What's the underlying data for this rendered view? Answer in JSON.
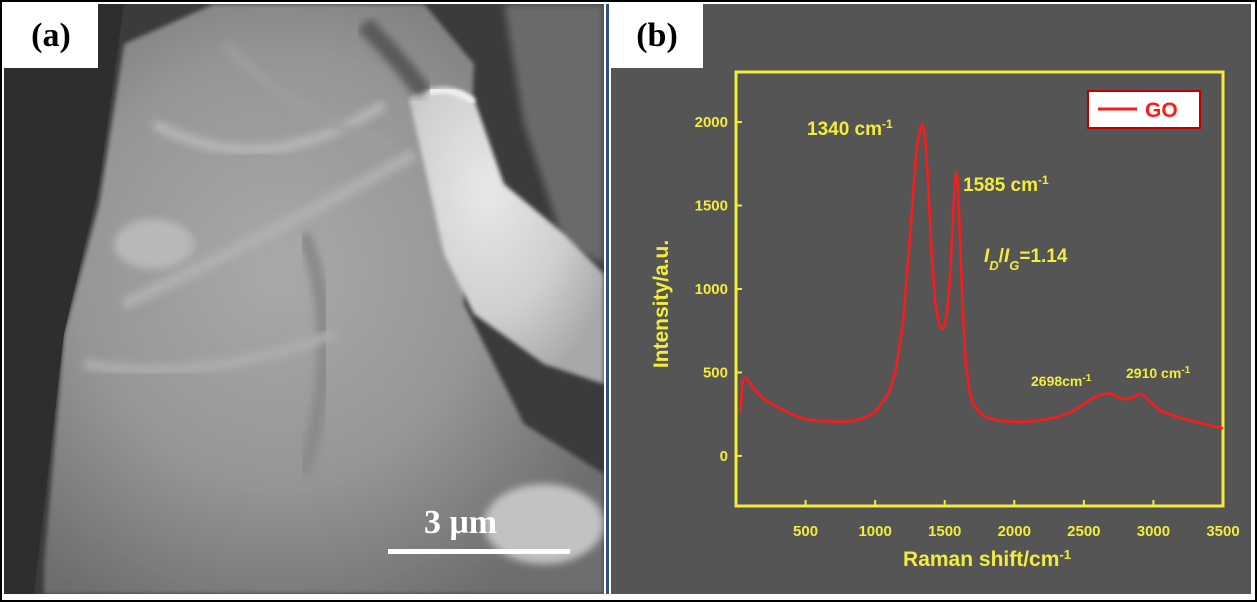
{
  "panel_a": {
    "label": "(a)",
    "scale_bar_label": "3 μm"
  },
  "panel_b": {
    "label": "(b)"
  },
  "colors": {
    "axis": "#f2ec3c",
    "series": "#ff1a1a",
    "panel_background": "#555555",
    "divider": "#2f4f86"
  },
  "chart_data": {
    "type": "line",
    "title": "",
    "xlabel": "Raman shift/cm-1",
    "ylabel": "Intensity/a.u.",
    "xlim": [
      0,
      3500
    ],
    "ylim": [
      -300,
      2300
    ],
    "x_ticks": [
      "500",
      "1000",
      "1500",
      "2000",
      "2500",
      "3000",
      "3500"
    ],
    "y_ticks": [
      "0",
      "500",
      "1000",
      "1500",
      "2000"
    ],
    "legend": {
      "position": "top-right",
      "entries": [
        "GO"
      ]
    },
    "annotations": {
      "d_band": "1340 cm-1",
      "g_band": "1585 cm-1",
      "ratio": "ID/IG=1.14",
      "band_2d": "2698cm-1",
      "band_d_g": "2910 cm-1"
    },
    "series": [
      {
        "name": "GO",
        "x": [
          30,
          50,
          70,
          100,
          150,
          200,
          300,
          400,
          500,
          600,
          700,
          800,
          900,
          1000,
          1100,
          1150,
          1200,
          1250,
          1280,
          1300,
          1320,
          1330,
          1340,
          1350,
          1360,
          1380,
          1400,
          1430,
          1460,
          1480,
          1500,
          1520,
          1540,
          1560,
          1575,
          1585,
          1595,
          1610,
          1630,
          1650,
          1680,
          1700,
          1750,
          1800,
          1900,
          2000,
          2100,
          2200,
          2300,
          2400,
          2500,
          2550,
          2600,
          2650,
          2680,
          2698,
          2720,
          2760,
          2800,
          2850,
          2880,
          2910,
          2940,
          2980,
          3050,
          3150,
          3250,
          3350,
          3450,
          3500
        ],
        "y": [
          260,
          460,
          470,
          440,
          380,
          340,
          290,
          250,
          220,
          210,
          205,
          205,
          220,
          260,
          380,
          520,
          800,
          1300,
          1650,
          1850,
          1940,
          1975,
          1985,
          1960,
          1900,
          1650,
          1300,
          930,
          790,
          760,
          780,
          880,
          1100,
          1450,
          1650,
          1700,
          1630,
          1300,
          880,
          560,
          380,
          320,
          260,
          230,
          210,
          205,
          205,
          215,
          230,
          260,
          310,
          340,
          360,
          370,
          375,
          375,
          360,
          345,
          340,
          350,
          365,
          372,
          355,
          320,
          270,
          240,
          215,
          195,
          175,
          165
        ]
      }
    ]
  }
}
